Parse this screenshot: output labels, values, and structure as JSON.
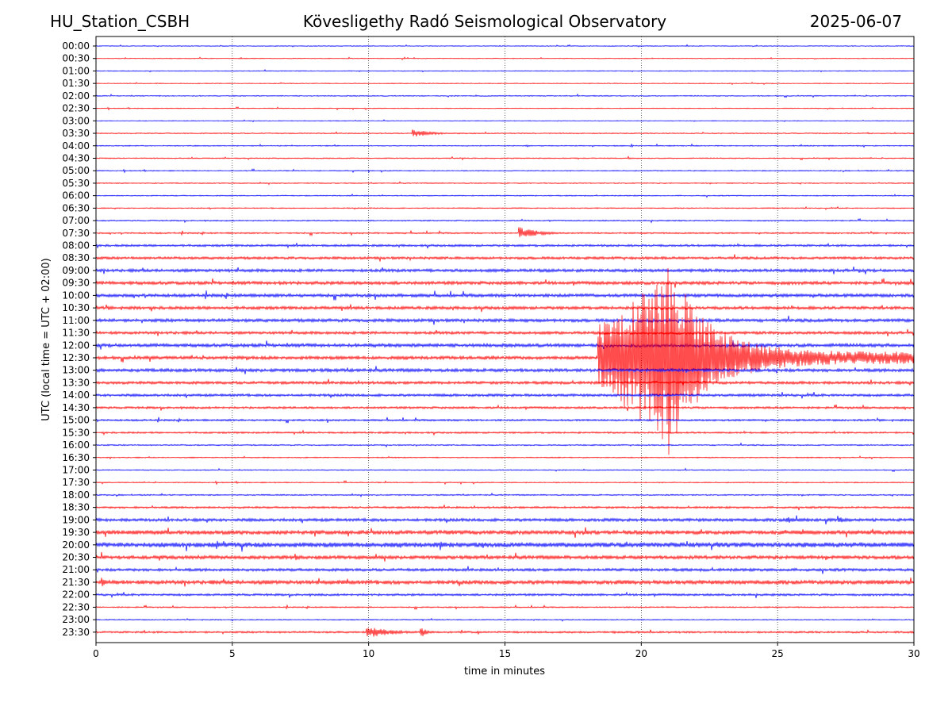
{
  "header": {
    "station": "HU_Station_CSBH",
    "observatory": "Kövesligethy Radó Seismological Observatory",
    "date": "2025-06-07"
  },
  "chart_data": {
    "type": "line",
    "title": "Kövesligethy Radó Seismological Observatory",
    "xlabel": "time in minutes",
    "ylabel": "UTC (local time = UTC + 02:00)",
    "xlim": [
      0,
      30
    ],
    "xticks": [
      0,
      5,
      10,
      15,
      20,
      25,
      30
    ],
    "grid_x": [
      5,
      10,
      15,
      20,
      25
    ],
    "colors": {
      "even_row": "#0000ff",
      "odd_row": "#ff0000"
    },
    "rows": [
      "00:00",
      "00:30",
      "01:00",
      "01:30",
      "02:00",
      "02:30",
      "03:00",
      "03:30",
      "04:00",
      "04:30",
      "05:00",
      "05:30",
      "06:00",
      "06:30",
      "07:00",
      "07:30",
      "08:00",
      "08:30",
      "09:00",
      "09:30",
      "10:00",
      "10:30",
      "11:00",
      "11:30",
      "12:00",
      "12:30",
      "13:00",
      "13:30",
      "14:00",
      "14:30",
      "15:00",
      "15:30",
      "16:00",
      "16:30",
      "17:00",
      "17:30",
      "18:00",
      "18:30",
      "19:00",
      "19:30",
      "20:00",
      "20:30",
      "21:00",
      "21:30",
      "22:00",
      "22:30",
      "23:00",
      "23:30"
    ],
    "noise_level": [
      0.4,
      0.4,
      0.4,
      0.4,
      0.5,
      0.4,
      0.4,
      0.5,
      0.5,
      0.5,
      0.5,
      0.5,
      0.5,
      0.5,
      0.6,
      0.7,
      1.0,
      1.2,
      1.4,
      1.5,
      1.5,
      1.4,
      1.5,
      1.3,
      1.6,
      1.5,
      1.5,
      1.3,
      1.2,
      1.0,
      0.9,
      0.8,
      0.6,
      0.5,
      0.5,
      0.5,
      0.6,
      0.9,
      1.4,
      1.8,
      2.2,
      1.6,
      1.3,
      1.8,
      1.0,
      0.6,
      0.5,
      0.9
    ],
    "events": [
      {
        "row": "03:30",
        "start": 11.6,
        "duration": 2.4,
        "amplitude": 5
      },
      {
        "row": "04:00",
        "start": 19.6,
        "duration": 0.3,
        "amplitude": 3
      },
      {
        "row": "04:30",
        "start": 19.5,
        "duration": 0.4,
        "amplitude": 3
      },
      {
        "row": "07:30",
        "start": 15.5,
        "duration": 2.2,
        "amplitude": 8
      },
      {
        "row": "09:30",
        "start": 6.7,
        "duration": 0.3,
        "amplitude": 5
      },
      {
        "row": "12:30",
        "start": 18.4,
        "duration": 11.6,
        "amplitude": 125,
        "peak": 21.0
      },
      {
        "row": "12:30",
        "start": 5.5,
        "duration": 0.4,
        "amplitude": 4
      },
      {
        "row": "19:00",
        "start": 25.3,
        "duration": 0.8,
        "amplitude": 6
      },
      {
        "row": "19:00",
        "start": 27.2,
        "duration": 0.8,
        "amplitude": 6
      },
      {
        "row": "20:00",
        "start": 12.6,
        "duration": 0.3,
        "amplitude": 9
      },
      {
        "row": "20:30",
        "start": 7.3,
        "duration": 0.6,
        "amplitude": 5
      },
      {
        "row": "21:30",
        "start": 0.2,
        "duration": 0.5,
        "amplitude": 7
      },
      {
        "row": "21:30",
        "start": 9.2,
        "duration": 0.3,
        "amplitude": 6
      },
      {
        "row": "23:30",
        "start": 9.9,
        "duration": 2.8,
        "amplitude": 8
      },
      {
        "row": "23:30",
        "start": 11.9,
        "duration": 0.6,
        "amplitude": 8
      }
    ]
  }
}
